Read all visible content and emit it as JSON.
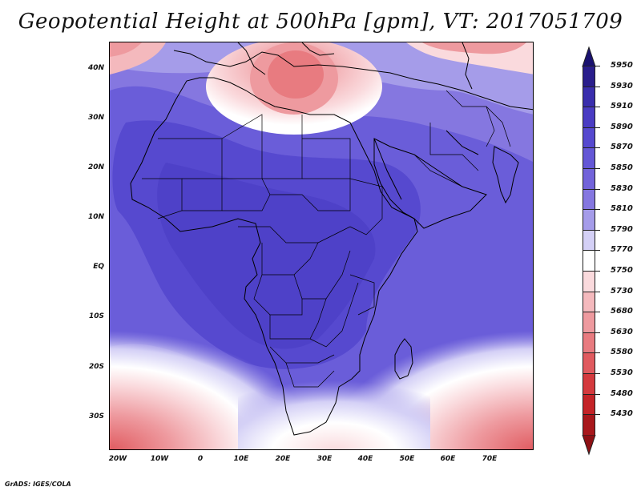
{
  "title": "Geopotential Height at 500hPa [gpm], VT: 2017051709",
  "footer": "GrADS: IGES/COLA",
  "lat_labels": [
    "40N",
    "30N",
    "20N",
    "10N",
    "EQ",
    "10S",
    "20S",
    "30S"
  ],
  "lon_labels": [
    "20W",
    "10W",
    "0",
    "10E",
    "20E",
    "30E",
    "40E",
    "50E",
    "60E",
    "70E"
  ],
  "colorbar": {
    "levels": [
      "5950",
      "5930",
      "5910",
      "5890",
      "5870",
      "5850",
      "5830",
      "5810",
      "5790",
      "5770",
      "5750",
      "5730",
      "5680",
      "5630",
      "5580",
      "5530",
      "5480",
      "5430"
    ],
    "colors": [
      "#2a1e8c",
      "#3a2ead",
      "#4a3cc3",
      "#5649cf",
      "#6457d6",
      "#7263da",
      "#8577e0",
      "#a59ce9",
      "#d4d0f6",
      "#ffffff",
      "#fadadd",
      "#f4b9bd",
      "#ee9a9f",
      "#e87b80",
      "#e05a5f",
      "#d43a3e",
      "#c42428",
      "#a8181c"
    ],
    "top_arrow_color": "#1a1270",
    "bottom_arrow_color": "#8e1014"
  },
  "map": {
    "background_color": "#6a5dd9",
    "coast_color": "#000000"
  }
}
